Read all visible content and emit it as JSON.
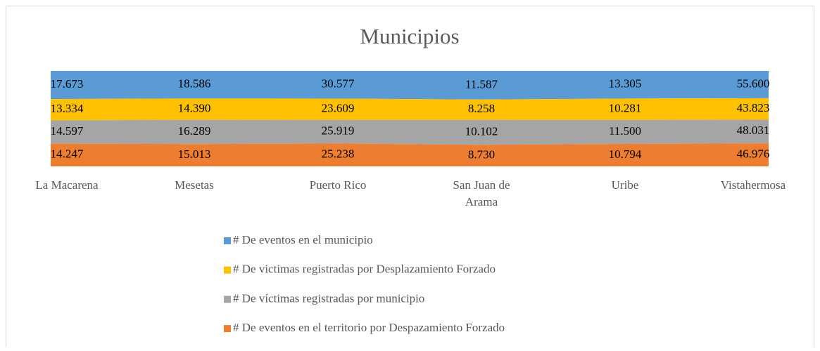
{
  "chart_data": {
    "type": "area",
    "stacking": "percent",
    "title": "Municipios",
    "categories": [
      "La Macarena",
      "Mesetas",
      "Puerto Rico",
      "San Juan de Arama",
      "Uribe",
      "Vistahermosa"
    ],
    "series": [
      {
        "name": "# De eventos en el  municipio",
        "color": "#5b9bd5",
        "values": [
          17673,
          18586,
          30577,
          11587,
          13305,
          55600
        ],
        "value_labels": [
          "17.673",
          "18.586",
          "30.577",
          "11.587",
          "13.305",
          "55.600"
        ]
      },
      {
        "name": "# De victimas registradas por Desplazamiento Forzado",
        "color": "#ffc000",
        "values": [
          13334,
          14390,
          23609,
          8258,
          10281,
          43823
        ],
        "value_labels": [
          "13.334",
          "14.390",
          "23.609",
          "8.258",
          "10.281",
          "43.823"
        ]
      },
      {
        "name": "# De víctimas registradas por municipio",
        "color": "#a5a5a5",
        "values": [
          14597,
          16289,
          25919,
          10102,
          11500,
          48031
        ],
        "value_labels": [
          "14.597",
          "16.289",
          "25.919",
          "10.102",
          "11.500",
          "48.031"
        ]
      },
      {
        "name": "# De eventos en el territorio por Despazamiento Forzado",
        "color": "#ed7d31",
        "values": [
          14247,
          15013,
          25238,
          8730,
          10794,
          46976
        ],
        "value_labels": [
          "14.247",
          "15.013",
          "25.238",
          "8.730",
          "10.794",
          "46.976"
        ]
      }
    ],
    "legend": "bottom"
  }
}
